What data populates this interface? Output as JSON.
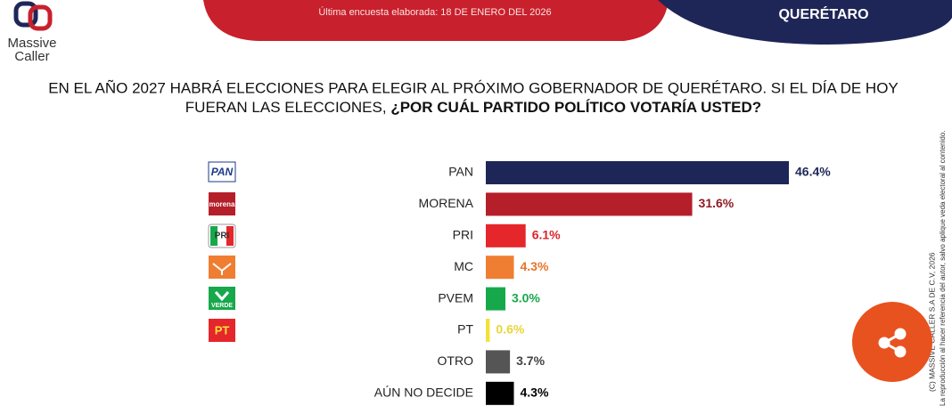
{
  "header": {
    "survey_date": "Última encuesta elaborada: 18 DE ENERO DEL 2026",
    "region": "QUERÉTARO",
    "brand_line1": "Massive",
    "brand_line2": "Caller"
  },
  "question": {
    "line1": "EN EL AÑO 2027 HABRÁ ELECCIONES PARA ELEGIR AL PRÓXIMO GOBERNADOR DE QUERÉTARO. SI EL DÍA DE HOY",
    "line2_plain": "FUERAN LAS ELECCIONES, ",
    "line2_bold": "¿POR CUÁL PARTIDO POLÍTICO VOTARÍA USTED?"
  },
  "party_logos": [
    "PAN",
    "morena",
    "PRI",
    "VERDE",
    "PT"
  ],
  "side_note": {
    "copyright": "(C) MASSIVE CALLER S.A DE C.V, 2026",
    "notice": "La reproducción al hacer referencia del autor, salvo aplique veda electoral al contenido."
  },
  "chart_data": {
    "type": "hbar",
    "categories": [
      "PAN",
      "MORENA",
      "PRI",
      "MC",
      "PVEM",
      "PT",
      "OTRO",
      "AÚN NO DECIDE"
    ],
    "values": [
      46.4,
      31.6,
      6.1,
      4.3,
      3.0,
      0.6,
      3.7,
      4.3
    ],
    "value_labels": [
      "46.4%",
      "31.6%",
      "6.1%",
      "4.3%",
      "3.0%",
      "0.6%",
      "3.7%",
      "4.3%"
    ],
    "colors": [
      "#1e2657",
      "#b51f2a",
      "#e5262b",
      "#ef7e32",
      "#17a84b",
      "#f3e23a",
      "#555555",
      "#000000"
    ],
    "label_colors": [
      "#1e2657",
      "#8e1b24",
      "#d9252a",
      "#e8742a",
      "#17a84b",
      "#e8d63a",
      "#444444",
      "#000000"
    ]
  }
}
